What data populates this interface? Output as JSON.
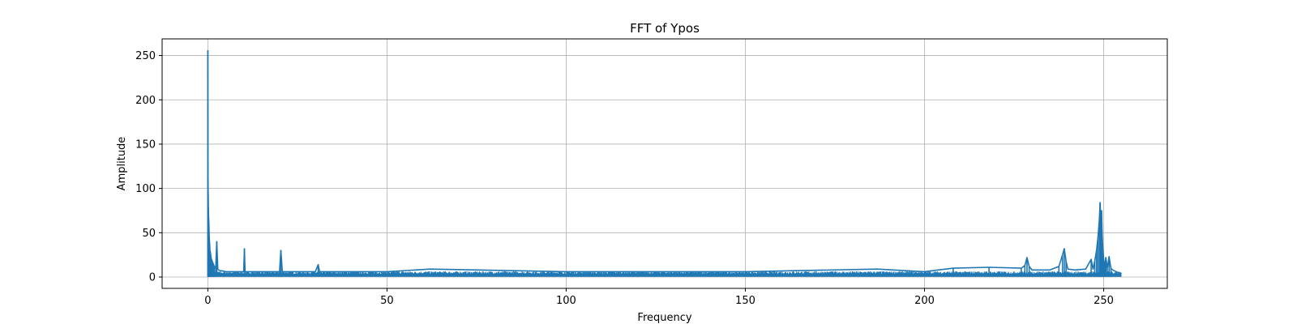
{
  "chart_data": {
    "type": "line",
    "title": "FFT of Ypos",
    "xlabel": "Frequency",
    "ylabel": "Amplitude",
    "xlim": [
      -12.75,
      267.75
    ],
    "ylim": [
      -12.8,
      268.8
    ],
    "xticks": [
      0,
      50,
      100,
      150,
      200,
      250
    ],
    "yticks": [
      0,
      50,
      100,
      150,
      200,
      250
    ],
    "grid": true,
    "color": "#1f77b4",
    "baseline_noise": {
      "x_range": [
        0,
        255
      ],
      "typical_max": 6.5,
      "floor": 0.3
    },
    "series": [
      {
        "x": [
          0,
          0.05,
          0.1,
          0.15,
          0.2,
          0.3,
          0.4,
          0.5,
          0.6,
          0.7,
          0.8,
          1.0,
          1.2,
          1.5,
          1.8,
          2.2,
          2.5,
          2.8,
          3.0,
          3.5,
          4.0,
          5.0,
          6.0,
          8.0,
          10.0,
          10.2,
          10.4,
          12.0,
          15.0,
          20.0,
          20.4,
          20.8,
          25.0,
          30.0,
          30.8,
          31.2,
          35.0,
          50.0,
          62.0,
          100.0,
          150.0,
          186.8,
          200.0,
          208.0,
          218.0,
          227.0,
          228.0,
          228.6,
          229.2,
          230.0,
          235.0,
          237.5,
          238.5,
          239.0,
          239.5,
          240.0,
          242.0,
          245.0,
          246.5,
          247.0,
          247.5,
          248.0,
          248.4,
          248.8,
          249.0,
          249.2,
          249.4,
          249.6,
          249.8,
          250.0,
          250.3,
          250.6,
          251.0,
          251.5,
          252.0,
          252.5,
          253.0,
          254.0,
          255.0
        ],
        "y": [
          256,
          110,
          95,
          78,
          70,
          60,
          45,
          38,
          30,
          28,
          25,
          20,
          18,
          15,
          12,
          10,
          40,
          9,
          8,
          7,
          7,
          6,
          6,
          6,
          6,
          32,
          6,
          6,
          6,
          6,
          30,
          6,
          6,
          6,
          14,
          6,
          6,
          6,
          9,
          6,
          6,
          9,
          6,
          10,
          11,
          10,
          13,
          22,
          12,
          8,
          8,
          12,
          25,
          32,
          18,
          9,
          8,
          9,
          20,
          9,
          18,
          30,
          45,
          65,
          84,
          62,
          75,
          44,
          30,
          20,
          12,
          22,
          10,
          23,
          10,
          8,
          7,
          5,
          4
        ]
      }
    ]
  }
}
